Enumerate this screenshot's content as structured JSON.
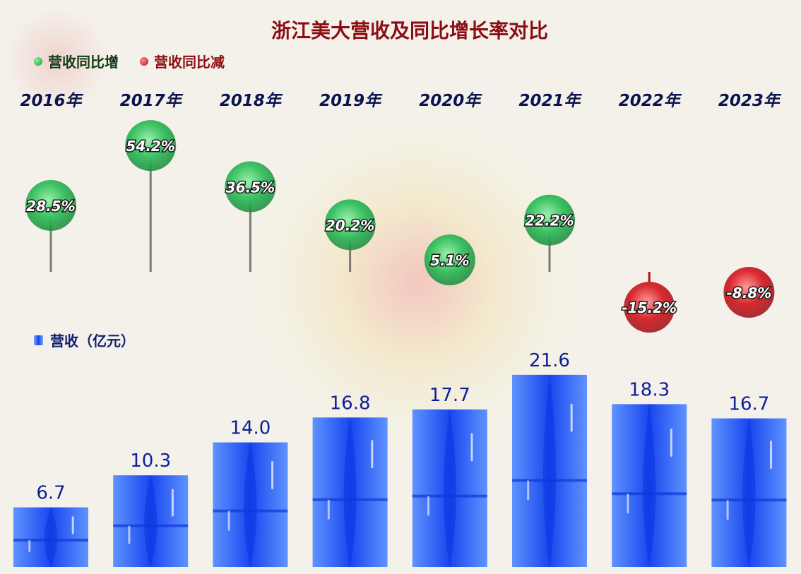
{
  "title": "浙江美大营收及同比增长率对比",
  "legend": {
    "growth_up": "营收同比增",
    "growth_down": "营收同比减",
    "revenue": "营收（亿元）"
  },
  "colors": {
    "title": "#8b0d12",
    "growth_up": "#1fae4a",
    "growth_down": "#c0161e",
    "revenue_bar": "#1a4ff0",
    "revenue_label": "#0d1f96",
    "year_label": "#0a1450"
  },
  "chart_data": [
    {
      "type": "scatter",
      "title": "浙江美大营收及同比增长率对比",
      "categories": [
        "2016年",
        "2017年",
        "2018年",
        "2019年",
        "2020年",
        "2021年",
        "2022年",
        "2023年"
      ],
      "series": [
        {
          "name": "营收同比增",
          "values": [
            28.5,
            54.2,
            36.5,
            20.2,
            5.1,
            22.2,
            -15.2,
            -8.8
          ],
          "labels": [
            "28.5%",
            "54.2%",
            "36.5%",
            "20.2%",
            "5.1%",
            "22.2%",
            "-15.2%",
            "-8.8%"
          ]
        }
      ],
      "unit": "%"
    },
    {
      "type": "bar",
      "categories": [
        "2016年",
        "2017年",
        "2018年",
        "2019年",
        "2020年",
        "2021年",
        "2022年",
        "2023年"
      ],
      "series": [
        {
          "name": "营收（亿元）",
          "values": [
            6.7,
            10.3,
            14.0,
            16.8,
            17.7,
            21.6,
            18.3,
            16.7
          ],
          "labels": [
            "6.7",
            "10.3",
            "14.0",
            "16.8",
            "17.7",
            "21.6",
            "18.3",
            "16.7"
          ]
        }
      ],
      "unit": "亿元"
    }
  ]
}
